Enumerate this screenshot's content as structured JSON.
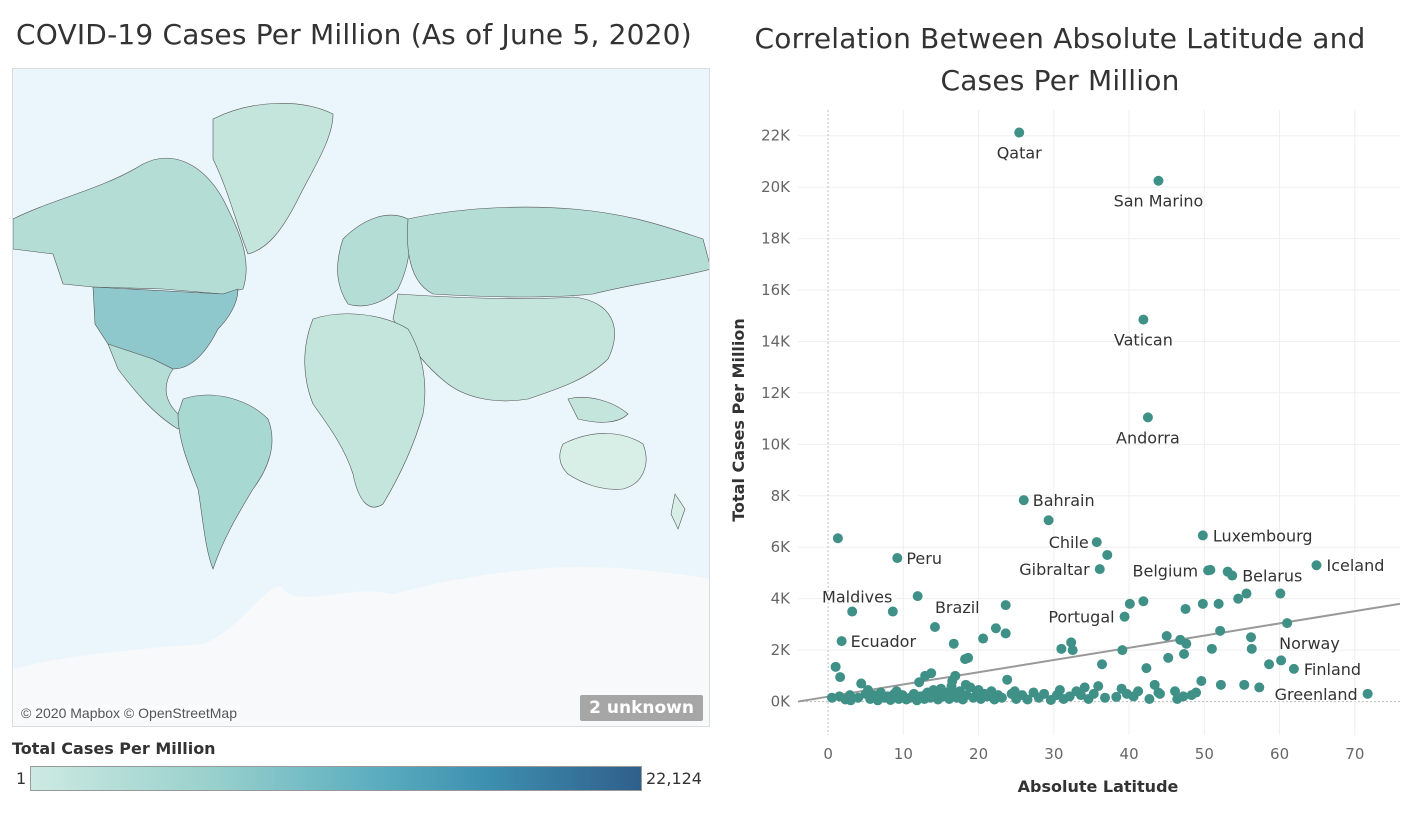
{
  "map_panel": {
    "title": "COVID-19 Cases Per Million (As of June 5, 2020)",
    "attribution": "© 2020 Mapbox © OpenStreetMap",
    "unknown_badge": "2 unknown",
    "legend": {
      "title": "Total Cases Per Million",
      "min_label": "1",
      "max_label": "22,124",
      "colors": [
        "#cdeae2",
        "#98d0cc",
        "#5eb0c0",
        "#3d8fb0",
        "#2f5f8a"
      ]
    }
  },
  "chart_data": {
    "type": "scatter",
    "title": "Correlation Between Absolute Latitude and Cases Per Million",
    "xlabel": "Absolute Latitude",
    "ylabel": "Total Cases Per Million",
    "xlim": [
      -4,
      76
    ],
    "ylim": [
      -1300,
      23000
    ],
    "x_ticks": [
      0,
      10,
      20,
      30,
      40,
      50,
      60,
      70
    ],
    "y_ticks": [
      0,
      2000,
      4000,
      6000,
      8000,
      10000,
      12000,
      14000,
      16000,
      18000,
      20000,
      22000
    ],
    "y_tick_labels": [
      "0K",
      "2K",
      "4K",
      "6K",
      "8K",
      "10K",
      "12K",
      "14K",
      "16K",
      "18K",
      "20K",
      "22K"
    ],
    "grid": true,
    "point_color": "#3f9087",
    "trend_line": {
      "color": "#999999",
      "x": [
        -4,
        76
      ],
      "y": [
        0,
        3800
      ]
    },
    "labeled_points": [
      {
        "name": "Qatar",
        "x": 25.4,
        "y": 22124
      },
      {
        "name": "San Marino",
        "x": 43.9,
        "y": 20250
      },
      {
        "name": "Vatican",
        "x": 41.9,
        "y": 14850
      },
      {
        "name": "Andorra",
        "x": 42.5,
        "y": 11050
      },
      {
        "name": "Bahrain",
        "x": 26.0,
        "y": 7830
      },
      {
        "name": "Chile",
        "x": 35.7,
        "y": 6200
      },
      {
        "name": "Luxembourg",
        "x": 49.8,
        "y": 6460
      },
      {
        "name": "Peru",
        "x": 9.2,
        "y": 5580
      },
      {
        "name": "Iceland",
        "x": 64.9,
        "y": 5300
      },
      {
        "name": "Gibraltar",
        "x": 36.1,
        "y": 5150
      },
      {
        "name": "Belgium",
        "x": 50.5,
        "y": 5100
      },
      {
        "name": "Belarus",
        "x": 53.7,
        "y": 4900
      },
      {
        "name": "Maldives",
        "x": 3.2,
        "y": 3500
      },
      {
        "name": "Brazil",
        "x": 14.2,
        "y": 2900
      },
      {
        "name": "Portugal",
        "x": 39.4,
        "y": 3300
      },
      {
        "name": "Ecuador",
        "x": 1.8,
        "y": 2350
      },
      {
        "name": "Norway",
        "x": 61.0,
        "y": 3050
      },
      {
        "name": "Finland",
        "x": 61.9,
        "y": 1270
      },
      {
        "name": "Greenland",
        "x": 71.7,
        "y": 300
      }
    ],
    "points": [
      [
        1.3,
        6350
      ],
      [
        29.3,
        7050
      ],
      [
        37.1,
        5700
      ],
      [
        50.8,
        5120
      ],
      [
        53.1,
        5050
      ],
      [
        55.6,
        4200
      ],
      [
        60.1,
        4200
      ],
      [
        11.9,
        4100
      ],
      [
        8.6,
        3500
      ],
      [
        23.6,
        3750
      ],
      [
        40.1,
        3800
      ],
      [
        41.9,
        3900
      ],
      [
        47.5,
        3600
      ],
      [
        49.8,
        3800
      ],
      [
        51.9,
        3800
      ],
      [
        54.5,
        4000
      ],
      [
        45.0,
        2550
      ],
      [
        46.8,
        2400
      ],
      [
        47.6,
        2250
      ],
      [
        52.1,
        2750
      ],
      [
        56.2,
        2500
      ],
      [
        56.3,
        2050
      ],
      [
        47.3,
        1850
      ],
      [
        20.6,
        2450
      ],
      [
        22.3,
        2850
      ],
      [
        23.6,
        2650
      ],
      [
        31.0,
        2050
      ],
      [
        32.3,
        2300
      ],
      [
        32.5,
        2000
      ],
      [
        36.4,
        1450
      ],
      [
        39.1,
        2000
      ],
      [
        42.3,
        1300
      ],
      [
        45.2,
        1700
      ],
      [
        51.0,
        2050
      ],
      [
        58.6,
        1450
      ],
      [
        60.2,
        1600
      ],
      [
        16.7,
        2250
      ],
      [
        18.2,
        1650
      ],
      [
        18.6,
        1700
      ],
      [
        1.0,
        1350
      ],
      [
        1.6,
        950
      ],
      [
        12.1,
        750
      ],
      [
        12.9,
        1000
      ],
      [
        13.7,
        1100
      ],
      [
        16.5,
        800
      ],
      [
        16.9,
        1000
      ],
      [
        18.3,
        650
      ],
      [
        23.8,
        850
      ],
      [
        33.0,
        400
      ],
      [
        34.1,
        550
      ],
      [
        35.9,
        600
      ],
      [
        39.0,
        500
      ],
      [
        41.2,
        400
      ],
      [
        43.4,
        650
      ],
      [
        44.1,
        300
      ],
      [
        46.1,
        400
      ],
      [
        47.2,
        200
      ],
      [
        48.9,
        350
      ],
      [
        49.6,
        800
      ],
      [
        52.2,
        650
      ],
      [
        55.3,
        650
      ],
      [
        57.3,
        550
      ],
      [
        1.5,
        200
      ],
      [
        2.3,
        80
      ],
      [
        3.0,
        50
      ],
      [
        4.0,
        150
      ],
      [
        4.4,
        700
      ],
      [
        5.0,
        300
      ],
      [
        5.6,
        100
      ],
      [
        6.1,
        250
      ],
      [
        6.6,
        50
      ],
      [
        7.0,
        350
      ],
      [
        7.5,
        150
      ],
      [
        7.9,
        200
      ],
      [
        8.3,
        60
      ],
      [
        8.8,
        300
      ],
      [
        9.4,
        100
      ],
      [
        9.9,
        250
      ],
      [
        10.4,
        80
      ],
      [
        10.9,
        150
      ],
      [
        11.4,
        300
      ],
      [
        11.8,
        50
      ],
      [
        12.3,
        200
      ],
      [
        12.8,
        100
      ],
      [
        13.2,
        350
      ],
      [
        13.6,
        150
      ],
      [
        14.0,
        450
      ],
      [
        14.3,
        250
      ],
      [
        14.6,
        80
      ],
      [
        15.0,
        500
      ],
      [
        15.3,
        200
      ],
      [
        15.7,
        350
      ],
      [
        16.1,
        100
      ],
      [
        16.4,
        600
      ],
      [
        16.8,
        300
      ],
      [
        17.1,
        150
      ],
      [
        17.5,
        400
      ],
      [
        17.9,
        80
      ],
      [
        18.4,
        250
      ],
      [
        18.9,
        550
      ],
      [
        19.3,
        150
      ],
      [
        19.8,
        350
      ],
      [
        20.3,
        100
      ],
      [
        20.8,
        300
      ],
      [
        21.2,
        200
      ],
      [
        21.7,
        400
      ],
      [
        22.1,
        80
      ],
      [
        22.6,
        250
      ],
      [
        23.1,
        150
      ],
      [
        24.4,
        300
      ],
      [
        25.0,
        100
      ],
      [
        25.8,
        250
      ],
      [
        26.5,
        80
      ],
      [
        27.3,
        350
      ],
      [
        28.0,
        150
      ],
      [
        28.7,
        300
      ],
      [
        29.6,
        60
      ],
      [
        30.4,
        250
      ],
      [
        31.3,
        100
      ],
      [
        32.1,
        200
      ],
      [
        33.6,
        250
      ],
      [
        34.6,
        100
      ],
      [
        35.3,
        300
      ],
      [
        36.8,
        150
      ],
      [
        39.7,
        300
      ],
      [
        40.6,
        200
      ],
      [
        42.7,
        100
      ],
      [
        43.9,
        350
      ],
      [
        46.4,
        100
      ],
      [
        48.3,
        250
      ],
      [
        0.5,
        150
      ],
      [
        2.9,
        250
      ],
      [
        5.3,
        450
      ],
      [
        9.1,
        400
      ],
      [
        13.0,
        280
      ],
      [
        20.0,
        450
      ],
      [
        24.8,
        400
      ],
      [
        30.8,
        450
      ],
      [
        38.3,
        180
      ]
    ]
  }
}
